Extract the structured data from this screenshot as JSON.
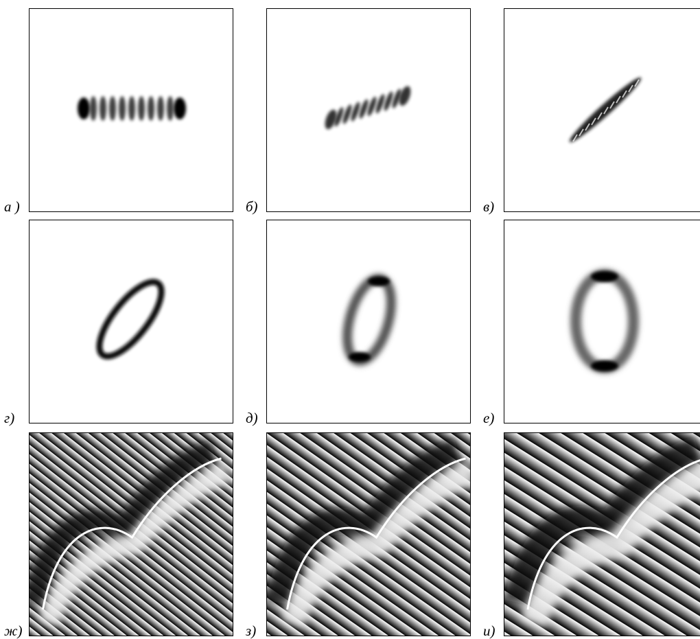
{
  "panels": [
    {
      "label": "а )"
    },
    {
      "label": "б)"
    },
    {
      "label": "в)"
    },
    {
      "label": "г)"
    },
    {
      "label": "д)"
    },
    {
      "label": "е)"
    },
    {
      "label": "ж)"
    },
    {
      "label": "з)"
    },
    {
      "label": "и)"
    }
  ]
}
